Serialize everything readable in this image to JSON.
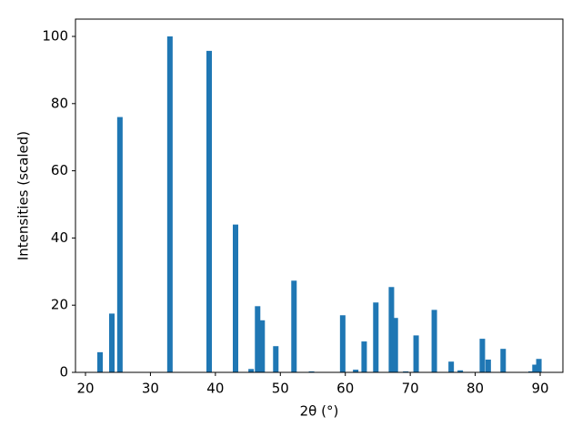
{
  "chart_data": {
    "type": "bar",
    "xlabel": "2θ (°)",
    "ylabel": "Intensities (scaled)",
    "x": [
      22.24,
      24.06,
      25.3,
      33.0,
      39.04,
      43.1,
      45.5,
      46.5,
      47.2,
      49.3,
      52.1,
      54.8,
      59.6,
      61.6,
      62.9,
      64.7,
      67.1,
      67.7,
      69.3,
      70.9,
      73.7,
      76.3,
      77.7,
      81.1,
      82.0,
      84.3,
      88.6,
      89.2,
      89.8
    ],
    "values": [
      6,
      17.5,
      76,
      100,
      95.7,
      44,
      1,
      19.7,
      15.5,
      7.8,
      27.3,
      0.3,
      17,
      0.8,
      9.2,
      20.8,
      25.4,
      16.2,
      0.3,
      11,
      18.6,
      3.2,
      0.6,
      10,
      3.8,
      7,
      0.3,
      2.3,
      4
    ],
    "bar_width": 0.84,
    "color": "#1f77b4",
    "xlim": [
      18.46,
      93.5
    ],
    "xticks": [
      20,
      30,
      40,
      50,
      60,
      70,
      80,
      90
    ],
    "ylim": [
      0,
      105.15
    ],
    "yticks": [
      0,
      20,
      40,
      60,
      80,
      100
    ],
    "grid": false
  }
}
